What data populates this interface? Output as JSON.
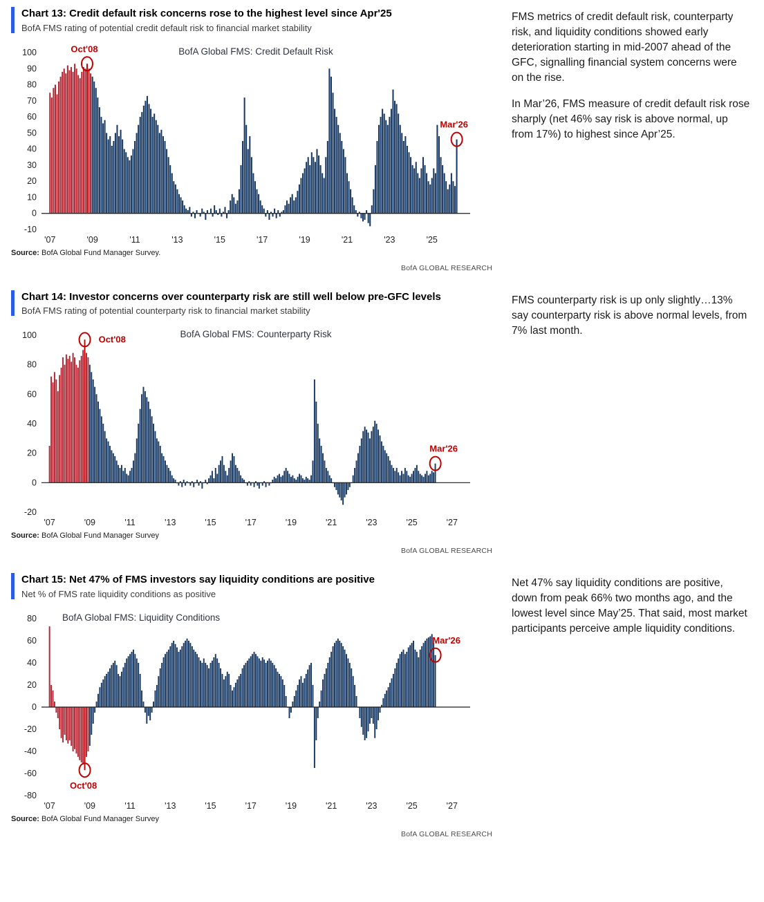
{
  "sections": [
    {
      "title": "Chart 13: Credit default risk concerns rose to the highest level since Apr'25",
      "subtitle": "BofA FMS rating of potential credit default risk to financial market stability",
      "source_label": "Source:",
      "source_text": " BofA Global Fund Manager Survey.",
      "brand": "BofA GLOBAL RESEARCH",
      "commentary": [
        "FMS metrics of credit default risk, counterparty risk, and liquidity conditions showed early deterioration starting in mid-2007 ahead of the GFC, signalling financial system concerns were on the rise.",
        "In Mar’26, FMS measure of credit default risk rose sharply (net 46% say risk is above normal, up from 17%) to highest since Apr’25."
      ]
    },
    {
      "title": "Chart 14: Investor concerns over counterparty risk are still well below pre-GFC levels",
      "subtitle": "BofA FMS rating of potential counterparty risk to financial market stability",
      "source_label": "Source:",
      "source_text": " BofA Global Fund Manager Survey",
      "brand": "BofA GLOBAL RESEARCH",
      "commentary": [
        "FMS counterparty risk is up only slightly…13% say counterparty risk is above normal levels, from 7% last month."
      ]
    },
    {
      "title": "Chart 15: Net 47% of FMS investors say liquidity conditions are positive",
      "subtitle": "Net % of FMS rate liquidity conditions as positive",
      "source_label": "Source:",
      "source_text": " BofA Global Fund Manager Survey",
      "brand": "BofA GLOBAL RESEARCH",
      "commentary": [
        "Net 47% say liquidity conditions are positive, down from peak 66% two months ago, and the lowest level since May’25. That said, most market participants perceive ample liquidity conditions."
      ]
    }
  ],
  "chart_data": [
    {
      "type": "bar",
      "title": "BofA Global FMS: Credit Default Risk",
      "title_align": "center",
      "start_year": 2007,
      "xlim": [
        2006.6,
        2026.8
      ],
      "x_ticks": [
        "'07",
        "'09",
        "'11",
        "'13",
        "'15",
        "'17",
        "'19",
        "'21",
        "'23",
        "'25"
      ],
      "x_tick_years": [
        2007,
        2009,
        2011,
        2013,
        2015,
        2017,
        2019,
        2021,
        2023,
        2025
      ],
      "ylim": [
        -10,
        100
      ],
      "y_ticks": [
        100,
        90,
        80,
        70,
        60,
        50,
        40,
        30,
        20,
        10,
        0,
        -10
      ],
      "red_until": 2009.0,
      "bar_color": "#173862",
      "gfc_color": "#b22532",
      "annot_color": "#c00000",
      "annotations": [
        {
          "label": "Oct'08",
          "x": 2008.75,
          "y": 93,
          "pos": "above",
          "dx": -4,
          "line_to": 0
        },
        {
          "label": "Mar'26",
          "x": 2026.17,
          "y": 46,
          "pos": "above",
          "dx": -4
        }
      ],
      "values": [
        75,
        72,
        78,
        80,
        74,
        82,
        85,
        88,
        90,
        87,
        92,
        89,
        91,
        88,
        93,
        90,
        86,
        84,
        88,
        91,
        90,
        93,
        90,
        87,
        85,
        82,
        78,
        72,
        66,
        60,
        56,
        58,
        50,
        46,
        48,
        42,
        45,
        50,
        55,
        48,
        52,
        46,
        40,
        38,
        35,
        33,
        36,
        40,
        45,
        50,
        55,
        60,
        63,
        67,
        70,
        73,
        68,
        65,
        60,
        62,
        58,
        55,
        50,
        52,
        48,
        45,
        40,
        35,
        30,
        25,
        20,
        18,
        15,
        12,
        10,
        8,
        5,
        3,
        2,
        4,
        -2,
        1,
        -3,
        2,
        0,
        -2,
        3,
        1,
        -4,
        2,
        0,
        3,
        -2,
        5,
        2,
        -1,
        3,
        -2,
        1,
        4,
        -3,
        2,
        8,
        12,
        10,
        6,
        8,
        15,
        30,
        45,
        72,
        55,
        40,
        48,
        35,
        25,
        20,
        15,
        12,
        8,
        5,
        3,
        -2,
        2,
        -4,
        1,
        -2,
        3,
        -3,
        2,
        -2,
        1,
        2,
        5,
        8,
        6,
        10,
        12,
        8,
        10,
        14,
        18,
        22,
        25,
        28,
        32,
        35,
        30,
        38,
        35,
        32,
        40,
        36,
        30,
        25,
        22,
        35,
        45,
        90,
        85,
        75,
        65,
        60,
        55,
        50,
        45,
        40,
        35,
        25,
        20,
        15,
        10,
        5,
        2,
        -2,
        1,
        -3,
        -5,
        -4,
        2,
        -6,
        -8,
        5,
        15,
        30,
        45,
        55,
        60,
        65,
        62,
        58,
        55,
        60,
        65,
        77,
        70,
        68,
        62,
        55,
        50,
        45,
        48,
        42,
        38,
        35,
        30,
        28,
        32,
        25,
        22,
        28,
        35,
        30,
        25,
        20,
        18,
        22,
        28,
        25,
        55,
        48,
        35,
        30,
        25,
        20,
        15,
        18,
        25,
        20,
        17,
        46
      ]
    },
    {
      "type": "bar",
      "title": "BofA Global FMS: Counterparty Risk",
      "title_align": "center",
      "start_year": 2007,
      "xlim": [
        2006.6,
        2027.9
      ],
      "x_ticks": [
        "'07",
        "'09",
        "'11",
        "'13",
        "'15",
        "'17",
        "'19",
        "'21",
        "'23",
        "'25",
        "'27"
      ],
      "x_tick_years": [
        2007,
        2009,
        2011,
        2013,
        2015,
        2017,
        2019,
        2021,
        2023,
        2025,
        2027
      ],
      "ylim": [
        -20,
        100
      ],
      "y_ticks": [
        100,
        80,
        60,
        40,
        20,
        0,
        -20
      ],
      "red_until": 2009.0,
      "bar_color": "#173862",
      "gfc_color": "#b22532",
      "annot_color": "#c00000",
      "annotations": [
        {
          "label": "Oct'08",
          "x": 2008.75,
          "y": 97,
          "pos": "right",
          "dx": 8,
          "line_to": 0
        },
        {
          "label": "Mar'26",
          "x": 2026.17,
          "y": 13,
          "pos": "above",
          "dx": 12
        }
      ],
      "values": [
        25,
        72,
        68,
        75,
        70,
        62,
        73,
        78,
        85,
        80,
        87,
        84,
        86,
        82,
        88,
        85,
        80,
        78,
        83,
        86,
        90,
        97,
        88,
        85,
        80,
        75,
        70,
        65,
        60,
        55,
        50,
        45,
        40,
        35,
        30,
        28,
        25,
        22,
        20,
        18,
        15,
        12,
        10,
        12,
        8,
        10,
        6,
        5,
        8,
        10,
        15,
        20,
        30,
        40,
        50,
        60,
        65,
        62,
        58,
        55,
        50,
        45,
        40,
        35,
        30,
        28,
        25,
        20,
        18,
        15,
        12,
        10,
        8,
        5,
        3,
        2,
        0,
        -2,
        1,
        -3,
        2,
        -2,
        1,
        0,
        -2,
        1,
        -3,
        0,
        2,
        -2,
        1,
        -4,
        0,
        2,
        -1,
        3,
        5,
        8,
        3,
        10,
        6,
        12,
        15,
        18,
        12,
        8,
        5,
        10,
        15,
        20,
        18,
        12,
        10,
        8,
        5,
        3,
        2,
        0,
        -2,
        1,
        -2,
        0,
        -3,
        1,
        -2,
        -4,
        0,
        -2,
        1,
        -3,
        0,
        -2,
        0,
        2,
        4,
        3,
        5,
        6,
        4,
        5,
        8,
        10,
        8,
        6,
        4,
        5,
        3,
        2,
        4,
        6,
        5,
        3,
        2,
        4,
        3,
        2,
        5,
        15,
        70,
        55,
        40,
        30,
        25,
        20,
        15,
        10,
        8,
        5,
        3,
        0,
        -3,
        -5,
        -8,
        -10,
        -12,
        -15,
        -10,
        -8,
        -5,
        -3,
        0,
        5,
        10,
        15,
        20,
        25,
        30,
        35,
        38,
        36,
        34,
        30,
        35,
        38,
        42,
        40,
        36,
        32,
        28,
        25,
        22,
        20,
        18,
        15,
        12,
        10,
        8,
        10,
        7,
        5,
        8,
        6,
        10,
        8,
        5,
        4,
        6,
        8,
        10,
        12,
        8,
        6,
        5,
        4,
        6,
        8,
        5,
        6,
        8,
        7,
        13
      ]
    },
    {
      "type": "bar",
      "title": "BofA Global FMS: Liquidity Conditions",
      "title_align": "left",
      "start_year": 2007,
      "xlim": [
        2006.6,
        2027.9
      ],
      "x_ticks": [
        "'07",
        "'09",
        "'11",
        "'13",
        "'15",
        "'17",
        "'19",
        "'21",
        "'23",
        "'25",
        "'27"
      ],
      "x_tick_years": [
        2007,
        2009,
        2011,
        2013,
        2015,
        2017,
        2019,
        2021,
        2023,
        2025,
        2027
      ],
      "ylim": [
        -80,
        80
      ],
      "y_ticks": [
        80,
        60,
        40,
        20,
        0,
        -20,
        -40,
        -60,
        -80
      ],
      "red_until": 2009.0,
      "bar_color": "#173862",
      "gfc_color": "#b22532",
      "annot_color": "#c00000",
      "annotations": [
        {
          "label": "Oct'08",
          "x": 2008.75,
          "y": -57,
          "pos": "below",
          "dx": -2,
          "line_to": 0
        },
        {
          "label": "Mar'26",
          "x": 2026.17,
          "y": 47,
          "pos": "above",
          "dx": 16
        }
      ],
      "values": [
        73,
        20,
        15,
        5,
        -5,
        -10,
        -20,
        -28,
        -32,
        -25,
        -30,
        -33,
        -30,
        -35,
        -40,
        -38,
        -42,
        -45,
        -48,
        -50,
        -52,
        -57,
        -45,
        -40,
        -35,
        -25,
        -15,
        -5,
        5,
        12,
        18,
        22,
        25,
        28,
        30,
        32,
        35,
        38,
        40,
        42,
        38,
        30,
        28,
        32,
        36,
        40,
        44,
        46,
        48,
        50,
        52,
        48,
        44,
        40,
        30,
        15,
        5,
        -5,
        -15,
        -8,
        -12,
        -5,
        5,
        15,
        20,
        28,
        35,
        40,
        45,
        48,
        50,
        52,
        55,
        58,
        60,
        57,
        54,
        50,
        52,
        55,
        58,
        60,
        62,
        60,
        58,
        55,
        52,
        50,
        48,
        45,
        42,
        40,
        44,
        40,
        38,
        35,
        40,
        42,
        45,
        48,
        44,
        40,
        35,
        30,
        25,
        28,
        32,
        30,
        20,
        15,
        18,
        22,
        25,
        28,
        30,
        35,
        38,
        40,
        42,
        44,
        46,
        48,
        50,
        48,
        46,
        44,
        42,
        45,
        43,
        40,
        42,
        44,
        42,
        40,
        38,
        35,
        32,
        30,
        28,
        25,
        20,
        10,
        0,
        -10,
        -5,
        5,
        10,
        15,
        20,
        25,
        28,
        22,
        26,
        30,
        34,
        38,
        40,
        20,
        -55,
        -30,
        -10,
        5,
        15,
        25,
        30,
        35,
        40,
        45,
        50,
        55,
        58,
        60,
        62,
        60,
        58,
        55,
        52,
        48,
        44,
        40,
        35,
        28,
        20,
        10,
        0,
        -10,
        -18,
        -25,
        -30,
        -28,
        -22,
        -15,
        -10,
        -15,
        -28,
        -20,
        -12,
        -5,
        2,
        8,
        12,
        15,
        18,
        22,
        26,
        30,
        35,
        40,
        44,
        48,
        50,
        52,
        48,
        50,
        54,
        56,
        58,
        60,
        52,
        50,
        45,
        52,
        55,
        58,
        60,
        62,
        63,
        64,
        66,
        58,
        47
      ]
    }
  ]
}
